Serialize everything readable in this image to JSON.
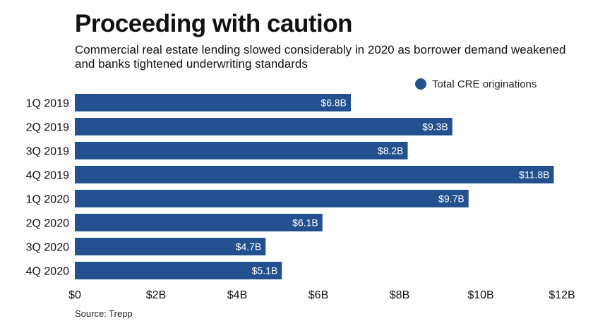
{
  "title": "Proceeding with caution",
  "subtitle": "Commercial real estate lending slowed considerably in 2020 as borrower demand weakened and banks tightened underwriting standards",
  "source": "Source: Trepp",
  "colors": {
    "bar": "#24508f",
    "bar_label": "#ffffff",
    "text": "#111111"
  },
  "chart_data": {
    "type": "bar",
    "orientation": "horizontal",
    "categories": [
      "1Q 2019",
      "2Q 2019",
      "3Q 2019",
      "4Q 2019",
      "1Q 2020",
      "2Q 2020",
      "3Q 2020",
      "4Q 2020"
    ],
    "series": [
      {
        "name": "Total CRE originations",
        "values": [
          6.8,
          9.3,
          8.2,
          11.8,
          9.7,
          6.1,
          4.7,
          5.1
        ],
        "labels": [
          "$6.8B",
          "$9.3B",
          "$8.2B",
          "$11.8B",
          "$9.7B",
          "$6.1B",
          "$4.7B",
          "$5.1B"
        ]
      }
    ],
    "xlim": [
      0,
      12
    ],
    "xticks": [
      0,
      2,
      4,
      6,
      8,
      10,
      12
    ],
    "xtick_labels": [
      "$0",
      "$2B",
      "$4B",
      "$6B",
      "$8B",
      "$10B",
      "$12B"
    ],
    "legend": "top-right",
    "grid": false
  }
}
